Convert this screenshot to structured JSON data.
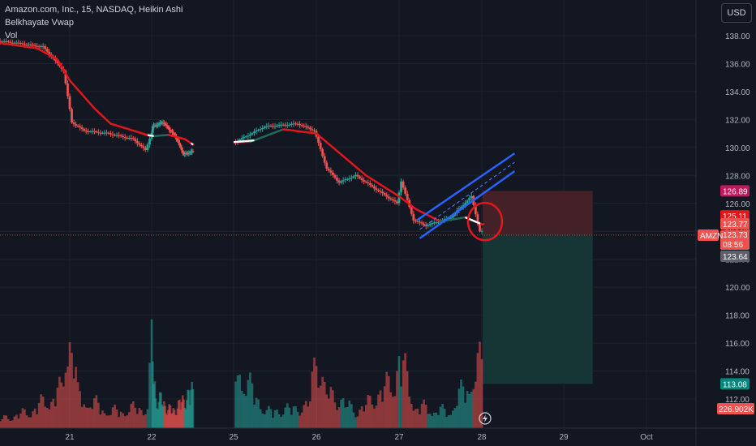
{
  "legend": {
    "symbol_line": "Amazon.com, Inc., 15, NASDAQ, Heikin Ashi",
    "indicator": "Belkhayate Vwap",
    "volume": "Vol"
  },
  "currency_button": "USD",
  "colors": {
    "background": "#131722",
    "bull": "#26a69a",
    "bear": "#ef5350",
    "vwap": "#e3161c",
    "vwap_alt": "#1f6b5a",
    "channel": "#2962ff",
    "risk_zone": "#4a2128",
    "reward_zone": "#163a37",
    "grid": "#1e222d"
  },
  "chart_data": {
    "type": "candlestick",
    "ylim": [
      111,
      139
    ],
    "y_ticks": [
      "138.00",
      "136.00",
      "134.00",
      "132.00",
      "130.00",
      "128.00",
      "126.00",
      "124.00",
      "122.00",
      "120.00",
      "118.00",
      "116.00",
      "114.00",
      "112.00"
    ],
    "x_ticks": [
      "21",
      "22",
      "25",
      "26",
      "27",
      "28",
      "29",
      "Oct"
    ],
    "price_path": [
      [
        20,
        137.7
      ],
      [
        20.35,
        137.5
      ],
      [
        20.7,
        137.2
      ],
      [
        20.95,
        135.5
      ],
      [
        21.05,
        131.8
      ],
      [
        21.2,
        131.2
      ],
      [
        21.5,
        131.0
      ],
      [
        21.8,
        130.6
      ],
      [
        21.95,
        129.8
      ],
      [
        22.05,
        131.5
      ],
      [
        22.3,
        131.8
      ],
      [
        22.6,
        130.8
      ],
      [
        22.8,
        129.5
      ],
      [
        23.0,
        129.7
      ],
      [
        25.05,
        130.4
      ],
      [
        25.4,
        131.5
      ],
      [
        25.8,
        131.7
      ],
      [
        26.0,
        131.2
      ],
      [
        26.15,
        128.5
      ],
      [
        26.3,
        127.5
      ],
      [
        26.5,
        128.0
      ],
      [
        26.75,
        127.0
      ],
      [
        27.0,
        126.0
      ],
      [
        27.05,
        127.6
      ],
      [
        27.2,
        124.8
      ],
      [
        27.35,
        124.4
      ],
      [
        27.65,
        125.0
      ],
      [
        27.9,
        126.5
      ],
      [
        28.0,
        124.0
      ]
    ],
    "vwap_path": [
      [
        20,
        137.6
      ],
      [
        20.6,
        137.1
      ],
      [
        20.85,
        136.3
      ],
      [
        21.0,
        134.8
      ],
      [
        21.3,
        132.8
      ],
      [
        21.5,
        131.7
      ],
      [
        22.0,
        130.8
      ],
      [
        22.4,
        130.9
      ],
      [
        22.8,
        130.6
      ],
      [
        23.0,
        130.2
      ],
      [
        25.2,
        130.4
      ],
      [
        25.6,
        131.3
      ],
      [
        26.0,
        131.0
      ],
      [
        26.3,
        129.5
      ],
      [
        26.6,
        128.0
      ],
      [
        27.0,
        126.5
      ],
      [
        27.2,
        125.6
      ],
      [
        27.5,
        124.7
      ],
      [
        27.8,
        125.0
      ],
      [
        28.0,
        124.5
      ]
    ],
    "channel": [
      [
        27.25,
        123.5
      ],
      [
        28.4,
        128.3
      ]
    ],
    "highlight_circle": [
      28.0,
      124.7
    ],
    "position": {
      "start_x": 28.05,
      "end_x": 29.35,
      "entry": 123.73,
      "stop": 126.89,
      "target": 113.08
    },
    "price_labels": {
      "stop": "126.89",
      "high": "125.11",
      "close": "123.77",
      "symbol": "AMZN",
      "last": "123.73",
      "countdown": "08:56",
      "low": "123.64",
      "target": "113.08",
      "volume": "226.902K"
    },
    "volume_max": 1.0,
    "volume_path": [
      [
        20,
        0.05
      ],
      [
        20.5,
        0.15
      ],
      [
        20.9,
        0.35
      ],
      [
        21.0,
        1.0
      ],
      [
        21.1,
        0.3
      ],
      [
        21.5,
        0.15
      ],
      [
        21.95,
        0.2
      ],
      [
        22.0,
        0.75
      ],
      [
        22.1,
        0.3
      ],
      [
        22.5,
        0.15
      ],
      [
        23.0,
        0.35
      ],
      [
        25.0,
        0.6
      ],
      [
        25.4,
        0.15
      ],
      [
        25.9,
        0.2
      ],
      [
        26.0,
        0.7
      ],
      [
        26.1,
        0.35
      ],
      [
        26.5,
        0.15
      ],
      [
        26.95,
        0.45
      ],
      [
        27.0,
        0.68
      ],
      [
        27.2,
        0.2
      ],
      [
        27.6,
        0.15
      ],
      [
        28.0,
        0.6
      ]
    ]
  }
}
